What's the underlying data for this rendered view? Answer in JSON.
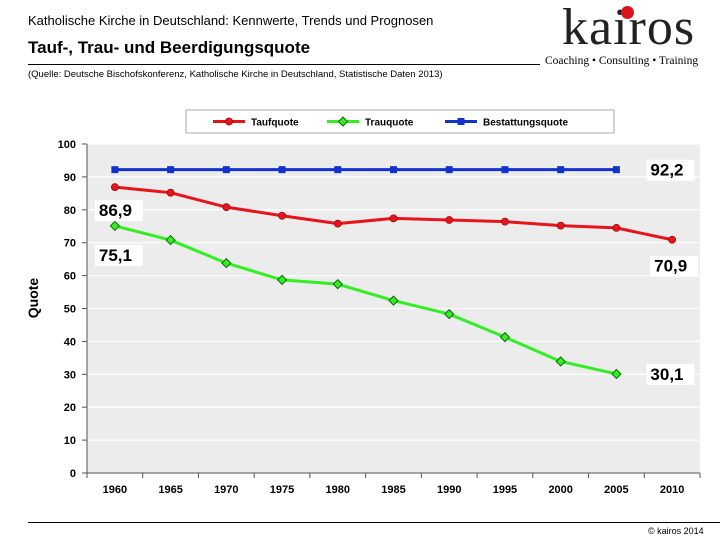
{
  "header": {
    "subtitle": "Katholische Kirche in Deutschland: Kennwerte, Trends und Prognosen",
    "title": "Tauf-, Trau- und Beerdigungsquote",
    "source": "(Quelle: Deutsche Bischofskonferenz, Katholische Kirche in Deutschland, Statistische Daten 2013)"
  },
  "logo": {
    "name": "kairos",
    "tagline": "Coaching • Consulting • Training",
    "dot_color": "#d9141c"
  },
  "footer": {
    "copyright": "© kairos 2014"
  },
  "chart_data": {
    "type": "line",
    "title": "",
    "xlabel": "",
    "ylabel": "Quote",
    "categories": [
      "1960",
      "1965",
      "1970",
      "1975",
      "1980",
      "1985",
      "1990",
      "1995",
      "2000",
      "2005",
      "2010"
    ],
    "ylim": [
      0,
      100
    ],
    "yticks": [
      0,
      10,
      20,
      30,
      40,
      50,
      60,
      70,
      80,
      90,
      100
    ],
    "grid": true,
    "legend_position": "top",
    "series": [
      {
        "name": "Taufquote",
        "color": "#e8141c",
        "marker": "circle",
        "values": [
          86.9,
          85.2,
          80.8,
          78.2,
          75.8,
          77.4,
          76.9,
          76.4,
          75.2,
          74.5,
          70.9
        ]
      },
      {
        "name": "Trauquote",
        "color": "#33ee22",
        "marker": "diamond",
        "values": [
          75.1,
          70.8,
          63.8,
          58.7,
          57.4,
          52.4,
          48.3,
          41.3,
          33.9,
          30.1,
          null
        ]
      },
      {
        "name": "Bestattungsquote",
        "color": "#1133cc",
        "marker": "square",
        "values": [
          92.2,
          92.2,
          92.2,
          92.2,
          92.2,
          92.2,
          92.2,
          92.2,
          92.2,
          92.2,
          null
        ]
      }
    ],
    "annotations": [
      {
        "text": "86,9",
        "series": "Taufquote",
        "category": "1960"
      },
      {
        "text": "75,1",
        "series": "Trauquote",
        "category": "1960"
      },
      {
        "text": "92,2",
        "series": "Bestattungsquote",
        "category": "2005"
      },
      {
        "text": "70,9",
        "series": "Taufquote",
        "category": "2010"
      },
      {
        "text": "30,1",
        "series": "Trauquote",
        "category": "2005"
      }
    ]
  }
}
